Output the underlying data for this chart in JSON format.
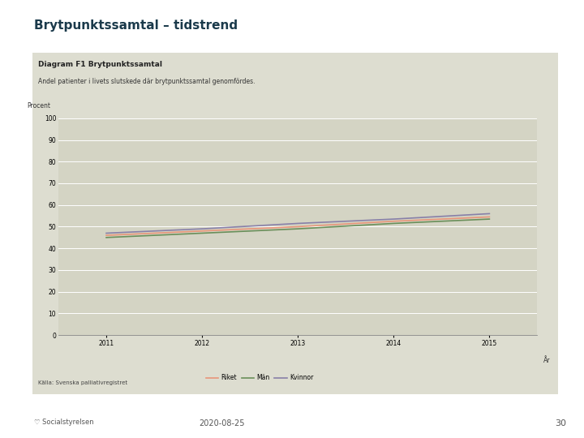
{
  "page_title": "Brytpunktssamtal – tidstrend",
  "diagram_title": "Diagram F1 Brytpunktssamtal",
  "subtitle": "Andel patienter i livets slutskede där brytpunktssamtal genomfördes.",
  "ylabel": "Procent",
  "xlabel": "År",
  "source": "Källa: Svenska palliativregistret",
  "years": [
    2011,
    2012,
    2013,
    2014,
    2015
  ],
  "riket": [
    46.0,
    48.0,
    50.0,
    52.5,
    54.5
  ],
  "man": [
    45.0,
    47.0,
    49.0,
    51.5,
    53.5
  ],
  "kvinnor": [
    47.0,
    49.0,
    51.5,
    53.5,
    56.0
  ],
  "riket_color": "#e8967a",
  "man_color": "#6a8f5a",
  "kvinnor_color": "#8880a8",
  "ylim": [
    0,
    100
  ],
  "yticks": [
    0,
    10,
    20,
    30,
    40,
    50,
    60,
    70,
    80,
    90,
    100
  ],
  "chart_bg": "#d4d4c4",
  "outer_bg": "#ffffff",
  "panel_bg": "#ddddd0",
  "title_color": "#1b3a4b",
  "date_text": "2020-08-25",
  "page_number": "30",
  "legend_labels": [
    "Riket",
    "Män",
    "Kvinnor"
  ]
}
